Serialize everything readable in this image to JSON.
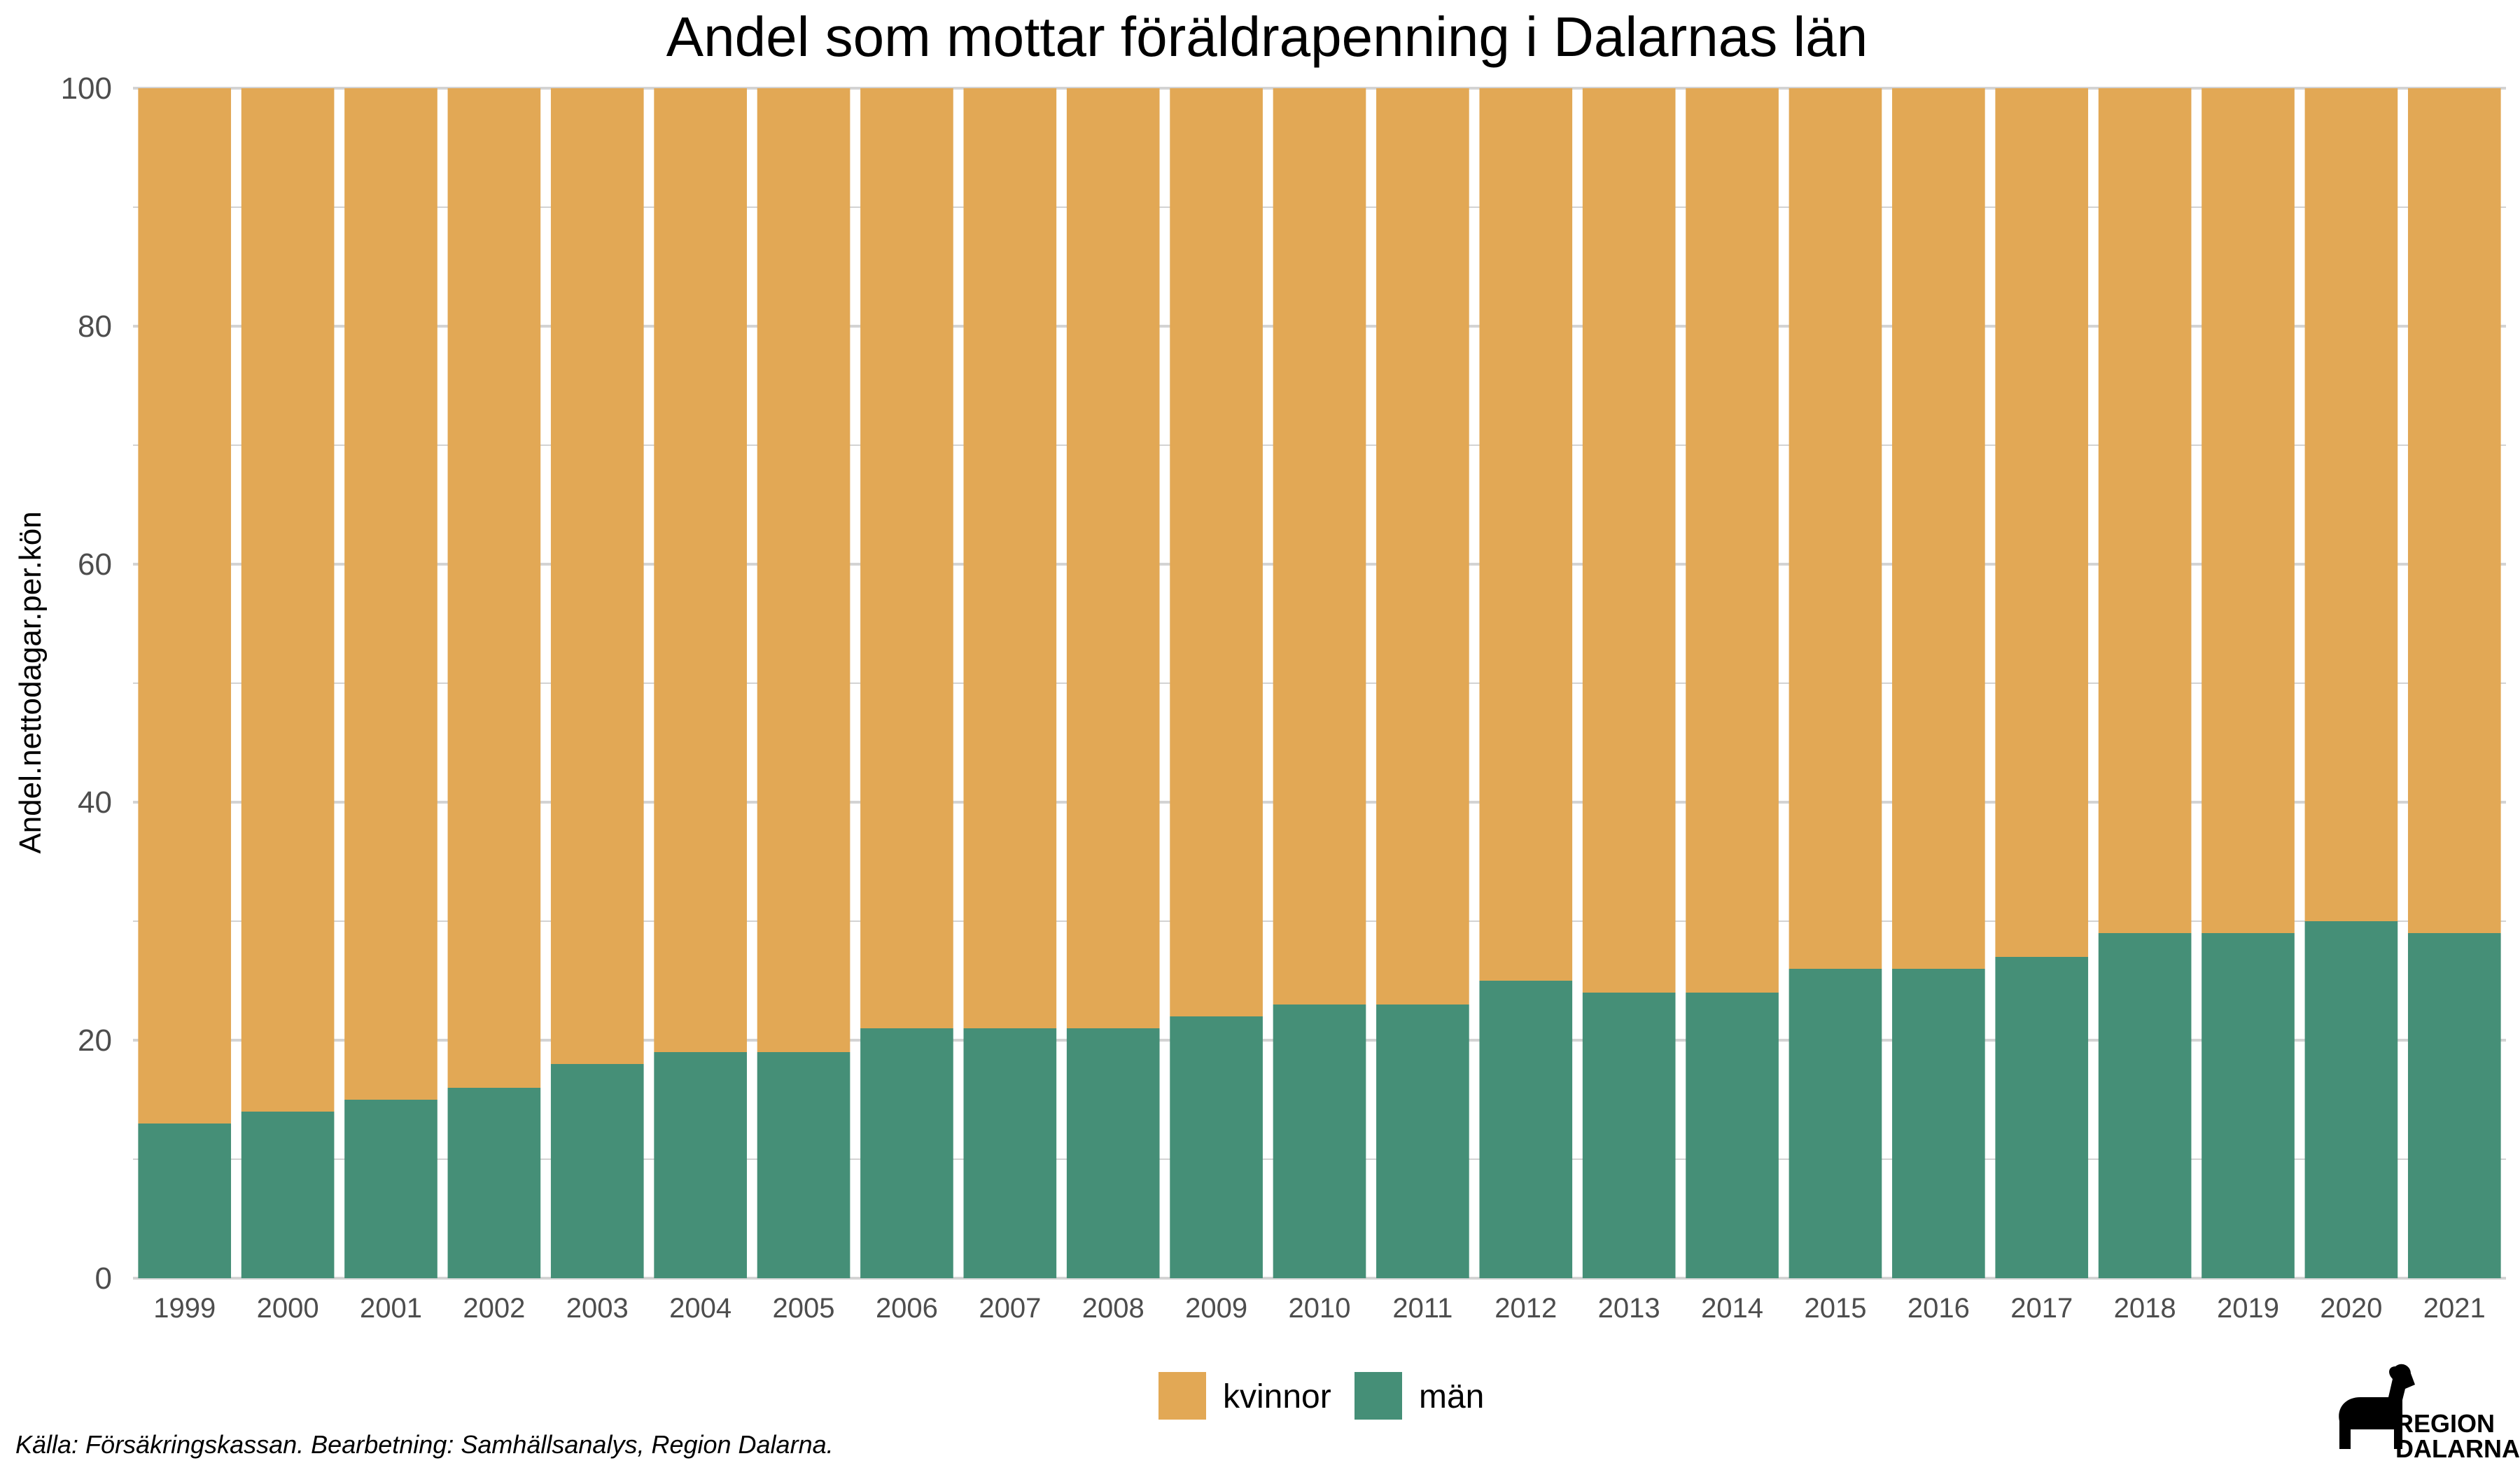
{
  "chart_data": {
    "type": "bar",
    "stacked": true,
    "title": "Andel som mottar föräldrapenning i Dalarnas län",
    "xlabel": "",
    "ylabel": "Andel.nettodagar.per.kön",
    "ylim": [
      0,
      100
    ],
    "yticks": [
      0,
      20,
      40,
      60,
      80,
      100
    ],
    "grid": true,
    "legend_position": "bottom",
    "categories": [
      "1999",
      "2000",
      "2001",
      "2002",
      "2003",
      "2004",
      "2005",
      "2006",
      "2007",
      "2008",
      "2009",
      "2010",
      "2011",
      "2012",
      "2013",
      "2014",
      "2015",
      "2016",
      "2017",
      "2018",
      "2019",
      "2020",
      "2021"
    ],
    "series": [
      {
        "name": "män",
        "color": "#458F77",
        "values": [
          13,
          14,
          15,
          16,
          18,
          19,
          19,
          21,
          21,
          21,
          22,
          23,
          23,
          25,
          24,
          24,
          26,
          26,
          27,
          29,
          29,
          30,
          29
        ]
      },
      {
        "name": "kvinnor",
        "color": "#E2A855",
        "values": [
          87,
          86,
          85,
          84,
          82,
          81,
          81,
          79,
          79,
          79,
          78,
          77,
          77,
          75,
          76,
          76,
          74,
          74,
          73,
          71,
          71,
          70,
          71
        ]
      }
    ],
    "legend": [
      {
        "name": "kvinnor",
        "color": "#E2A855"
      },
      {
        "name": "män",
        "color": "#458F77"
      }
    ]
  },
  "caption": "Källa: Försäkringskassan. Bearbetning: Samhällsanalys, Region Dalarna.",
  "logo": {
    "line1": "REGION",
    "line2": "DALARNA",
    "icon": "dala-horse-icon"
  }
}
